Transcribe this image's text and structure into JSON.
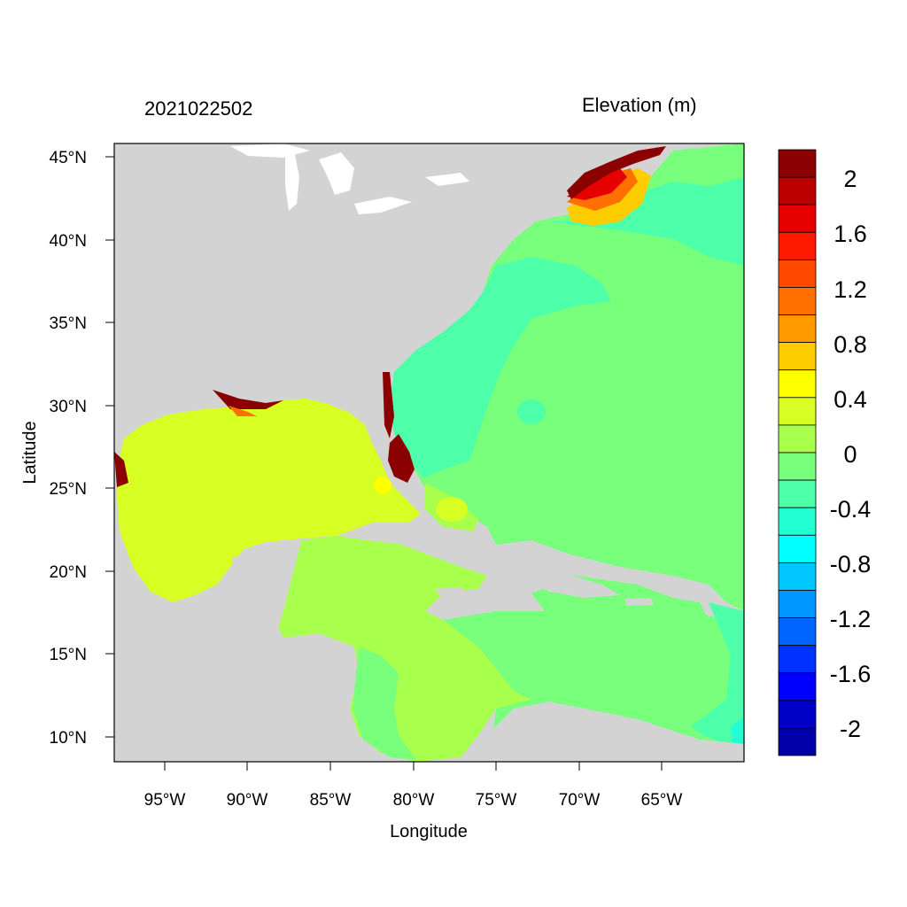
{
  "title_left": "2021022502",
  "title_right": "Elevation (m)",
  "x_axis": {
    "label": "Longitude",
    "ticks": [
      "95°W",
      "90°W",
      "85°W",
      "80°W",
      "75°W",
      "70°W",
      "65°W"
    ]
  },
  "y_axis": {
    "label": "Latitude",
    "ticks": [
      "45°N",
      "40°N",
      "35°N",
      "30°N",
      "25°N",
      "20°N",
      "15°N",
      "10°N"
    ]
  },
  "colorbar": {
    "colors": [
      "#8b0000",
      "#bb0000",
      "#e60000",
      "#ff1a00",
      "#ff4a00",
      "#ff7000",
      "#ff9a00",
      "#ffcc00",
      "#ffff00",
      "#d7ff24",
      "#a8ff4c",
      "#78ff7c",
      "#4dffa8",
      "#22ffd2",
      "#00ffff",
      "#00c8ff",
      "#0096ff",
      "#0064ff",
      "#0032ff",
      "#0000ff",
      "#0000c8",
      "#0000aa"
    ],
    "labels": [
      "2",
      "1.6",
      "1.2",
      "0.8",
      "0.4",
      "0",
      "-0.4",
      "-0.8",
      "-1.2",
      "-1.6",
      "-2"
    ]
  },
  "colors": {
    "land": "#d3d3d3",
    "ocean_near_zero": "#78ff7c",
    "ocean_negative": "#4dffa8",
    "gulf_positive": "#d7ff24",
    "caribbean_positive": "#a8ff4c",
    "surge_high": "#8b0000"
  }
}
